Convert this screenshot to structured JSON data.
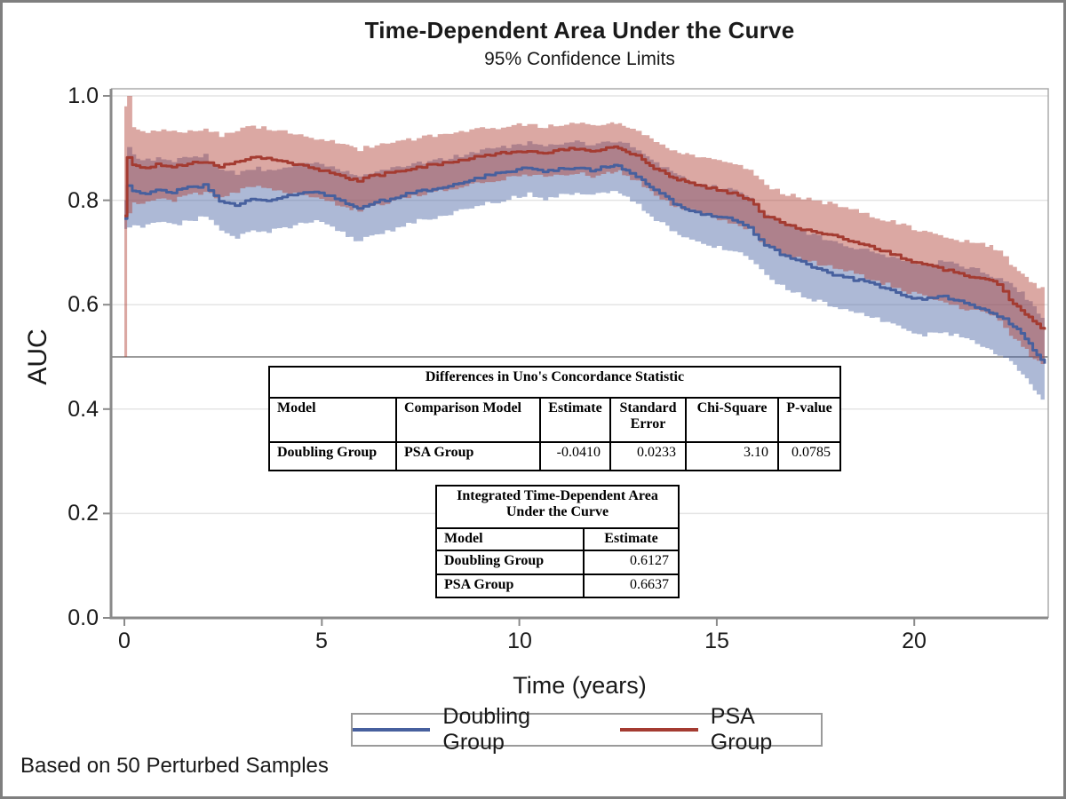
{
  "header": {
    "title": "Time-Dependent Area Under the Curve",
    "subtitle": "95% Confidence Limits"
  },
  "axes": {
    "y_label": "AUC",
    "x_label": "Time (years)",
    "y_tick_labels": [
      "1.0",
      "0.8",
      "0.6",
      "0.4",
      "0.2",
      "0.0"
    ],
    "y_tick_values": [
      1.0,
      0.8,
      0.6,
      0.4,
      0.2,
      0.0
    ],
    "x_tick_labels": [
      "0",
      "5",
      "10",
      "15",
      "20"
    ],
    "x_tick_values": [
      0,
      5,
      10,
      15,
      20
    ]
  },
  "chart_data": {
    "type": "line",
    "title": "Time-Dependent Area Under the Curve",
    "subtitle": "95% Confidence Limits",
    "xlabel": "Time (years)",
    "ylabel": "AUC",
    "xlim": [
      0,
      23.4
    ],
    "ylim": [
      0,
      1.0
    ],
    "grid": "horizontal",
    "legend_position": "bottom",
    "reference_line_y": 0.5,
    "band_meaning": "95% confidence limits from 50 perturbed samples",
    "x": [
      0,
      0.07,
      0.2,
      0.4,
      0.8,
      1.2,
      1.6,
      2.0,
      2.4,
      2.8,
      3.2,
      3.6,
      4.0,
      4.4,
      4.8,
      5.2,
      5.6,
      5.9,
      6.2,
      6.6,
      7.0,
      7.4,
      7.8,
      8.2,
      8.6,
      9.0,
      9.4,
      9.8,
      10.2,
      10.6,
      11.0,
      11.4,
      11.8,
      12.2,
      12.5,
      12.8,
      13.1,
      13.4,
      13.7,
      14.0,
      14.3,
      14.6,
      15.0,
      15.4,
      15.8,
      16.2,
      16.6,
      17.0,
      17.4,
      17.8,
      18.2,
      18.6,
      19.0,
      19.4,
      19.8,
      20.2,
      20.6,
      21.0,
      21.4,
      21.8,
      22.1,
      22.4,
      22.7,
      23.0,
      23.3
    ],
    "series": [
      {
        "name": "Doubling Group",
        "line_color": "#47609e",
        "band_color": "rgba(74,99,165,0.45)",
        "estimate": [
          0.765,
          0.828,
          0.818,
          0.812,
          0.82,
          0.816,
          0.824,
          0.828,
          0.8,
          0.792,
          0.803,
          0.8,
          0.806,
          0.812,
          0.815,
          0.808,
          0.795,
          0.786,
          0.793,
          0.801,
          0.809,
          0.817,
          0.822,
          0.829,
          0.836,
          0.845,
          0.85,
          0.856,
          0.862,
          0.855,
          0.86,
          0.863,
          0.858,
          0.864,
          0.866,
          0.853,
          0.838,
          0.82,
          0.805,
          0.79,
          0.78,
          0.774,
          0.768,
          0.762,
          0.746,
          0.716,
          0.698,
          0.685,
          0.672,
          0.662,
          0.652,
          0.646,
          0.638,
          0.628,
          0.616,
          0.61,
          0.617,
          0.611,
          0.601,
          0.589,
          0.577,
          0.565,
          0.545,
          0.515,
          0.487
        ],
        "lower": [
          0.745,
          0.748,
          0.752,
          0.75,
          0.758,
          0.752,
          0.762,
          0.768,
          0.74,
          0.73,
          0.742,
          0.74,
          0.748,
          0.754,
          0.758,
          0.748,
          0.732,
          0.722,
          0.73,
          0.74,
          0.75,
          0.76,
          0.766,
          0.774,
          0.782,
          0.792,
          0.798,
          0.805,
          0.812,
          0.804,
          0.81,
          0.813,
          0.808,
          0.814,
          0.816,
          0.8,
          0.783,
          0.763,
          0.748,
          0.732,
          0.722,
          0.715,
          0.709,
          0.702,
          0.685,
          0.654,
          0.636,
          0.622,
          0.609,
          0.599,
          0.588,
          0.582,
          0.573,
          0.562,
          0.549,
          0.542,
          0.549,
          0.542,
          0.53,
          0.516,
          0.503,
          0.489,
          0.466,
          0.434,
          0.408
        ],
        "upper": [
          0.8,
          0.902,
          0.888,
          0.874,
          0.88,
          0.876,
          0.882,
          0.886,
          0.858,
          0.852,
          0.862,
          0.858,
          0.864,
          0.868,
          0.87,
          0.864,
          0.854,
          0.846,
          0.852,
          0.858,
          0.865,
          0.872,
          0.876,
          0.882,
          0.888,
          0.895,
          0.9,
          0.905,
          0.91,
          0.904,
          0.908,
          0.911,
          0.906,
          0.912,
          0.914,
          0.903,
          0.89,
          0.874,
          0.86,
          0.846,
          0.836,
          0.83,
          0.824,
          0.819,
          0.804,
          0.775,
          0.758,
          0.746,
          0.733,
          0.724,
          0.714,
          0.708,
          0.701,
          0.692,
          0.681,
          0.676,
          0.683,
          0.678,
          0.67,
          0.66,
          0.649,
          0.639,
          0.622,
          0.594,
          0.566
        ]
      },
      {
        "name": "PSA Group",
        "line_color": "#a43b31",
        "band_color": "rgba(175,62,50,0.45)",
        "estimate": [
          0.77,
          0.882,
          0.868,
          0.862,
          0.868,
          0.864,
          0.871,
          0.874,
          0.863,
          0.874,
          0.883,
          0.879,
          0.874,
          0.868,
          0.86,
          0.853,
          0.843,
          0.838,
          0.845,
          0.851,
          0.857,
          0.864,
          0.868,
          0.873,
          0.879,
          0.885,
          0.889,
          0.893,
          0.896,
          0.892,
          0.896,
          0.899,
          0.895,
          0.899,
          0.901,
          0.89,
          0.878,
          0.862,
          0.85,
          0.84,
          0.834,
          0.828,
          0.82,
          0.812,
          0.8,
          0.77,
          0.757,
          0.748,
          0.741,
          0.734,
          0.726,
          0.717,
          0.707,
          0.697,
          0.687,
          0.677,
          0.669,
          0.662,
          0.655,
          0.648,
          0.64,
          0.61,
          0.59,
          0.567,
          0.552
        ],
        "lower": [
          0.5,
          0.775,
          0.796,
          0.795,
          0.804,
          0.8,
          0.81,
          0.815,
          0.803,
          0.816,
          0.826,
          0.822,
          0.817,
          0.811,
          0.803,
          0.796,
          0.785,
          0.78,
          0.788,
          0.795,
          0.802,
          0.81,
          0.815,
          0.821,
          0.828,
          0.835,
          0.84,
          0.845,
          0.849,
          0.844,
          0.849,
          0.852,
          0.847,
          0.852,
          0.854,
          0.841,
          0.828,
          0.81,
          0.797,
          0.786,
          0.78,
          0.773,
          0.765,
          0.756,
          0.743,
          0.712,
          0.698,
          0.689,
          0.681,
          0.674,
          0.665,
          0.656,
          0.645,
          0.635,
          0.624,
          0.614,
          0.606,
          0.598,
          0.59,
          0.582,
          0.573,
          0.542,
          0.52,
          0.495,
          0.478
        ],
        "upper": [
          0.98,
          1.0,
          0.94,
          0.93,
          0.934,
          0.93,
          0.934,
          0.936,
          0.925,
          0.934,
          0.942,
          0.938,
          0.933,
          0.927,
          0.919,
          0.912,
          0.903,
          0.898,
          0.904,
          0.909,
          0.914,
          0.92,
          0.923,
          0.927,
          0.932,
          0.937,
          0.94,
          0.943,
          0.945,
          0.941,
          0.944,
          0.947,
          0.943,
          0.947,
          0.949,
          0.939,
          0.928,
          0.913,
          0.902,
          0.893,
          0.888,
          0.882,
          0.875,
          0.868,
          0.856,
          0.828,
          0.815,
          0.807,
          0.8,
          0.794,
          0.786,
          0.778,
          0.768,
          0.759,
          0.749,
          0.74,
          0.732,
          0.726,
          0.72,
          0.713,
          0.706,
          0.678,
          0.66,
          0.639,
          0.626
        ]
      }
    ]
  },
  "uno_table": {
    "title": "Differences in Uno's Concordance Statistic",
    "headers": [
      "Model",
      "Comparison Model",
      "Estimate",
      "Standard Error",
      "Chi-Square",
      "P-value"
    ],
    "row": {
      "model": "Doubling Group",
      "comparison": "PSA Group",
      "estimate": "-0.0410",
      "std_error": "0.0233",
      "chi_square": "3.10",
      "p_value": "0.0785"
    }
  },
  "iauc_table": {
    "title": "Integrated Time-Dependent Area Under the Curve",
    "headers": [
      "Model",
      "Estimate"
    ],
    "rows": [
      {
        "model": "Doubling Group",
        "estimate": "0.6127"
      },
      {
        "model": "PSA Group",
        "estimate": "0.6637"
      }
    ]
  },
  "footnote": "Based on 50 Perturbed Samples"
}
